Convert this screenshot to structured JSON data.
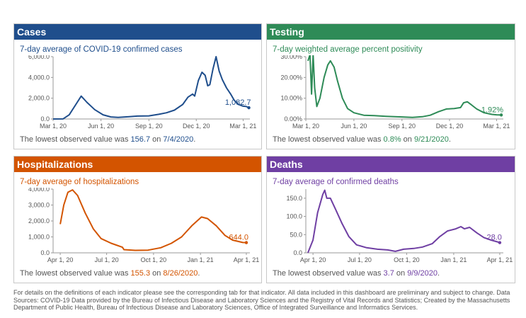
{
  "panels": [
    {
      "id": "cases",
      "header": "Cases",
      "color": "#1f4e8c",
      "subtitle": "7-day average of COVID-19 confirmed cases",
      "note_prefix": "The lowest observed value was ",
      "note_value": "156.7",
      "note_mid": " on ",
      "note_date": "7/4/2020",
      "note_suffix": "."
    },
    {
      "id": "testing",
      "header": "Testing",
      "color": "#2e8b57",
      "subtitle": "7-day weighted average percent positivity",
      "note_prefix": "The lowest observed value was ",
      "note_value": "0.8%",
      "note_mid": " on ",
      "note_date": "9/21/2020",
      "note_suffix": "."
    },
    {
      "id": "hospitalizations",
      "header": "Hospitalizations",
      "color": "#d35400",
      "subtitle": "7-day average of hospitalizations",
      "note_prefix": "The lowest observed value was ",
      "note_value": "155.3",
      "note_mid": " on ",
      "note_date": "8/26/2020",
      "note_suffix": "."
    },
    {
      "id": "deaths",
      "header": "Deaths",
      "color": "#6f3fa3",
      "subtitle": "7-day average of confirmed deaths",
      "note_prefix": "The lowest observed value was ",
      "note_value": "3.7",
      "note_mid": " on ",
      "note_date": "9/9/2020",
      "note_suffix": "."
    }
  ],
  "footer": "For details on the definitions of each indicator please see the corresponding tab for that indicator. All data included in this dashboard are preliminary and subject to change. Data Sources: COVID-19 Data provided by the Bureau of Infectious Disease and Laboratory Sciences and the Registry of Vital Records and Statistics; Created by the Massachusetts Department of Public Health, Bureau of Infectious Disease and Laboratory Sciences, Office of Integrated Surveillance and Informatics Services.",
  "chart_data": [
    {
      "type": "line",
      "title": "7-day average of COVID-19 confirmed cases",
      "xlabel": "",
      "ylabel": "",
      "x_ticks": [
        "Mar 1, 20",
        "Jun 1, 20",
        "Sep 1, 20",
        "Dec 1, 20",
        "Mar 1, 21"
      ],
      "y_ticks": [
        "0.0",
        "2,000.0",
        "4,000.0",
        "6,000.0"
      ],
      "ylim": [
        0,
        6000
      ],
      "x_range": [
        "2020-03-01",
        "2021-03-14"
      ],
      "end_label": "1,082.7",
      "series": [
        {
          "points": [
            [
              "2020-03-01",
              0
            ],
            [
              "2020-03-20",
              10
            ],
            [
              "2020-04-01",
              400
            ],
            [
              "2020-04-15",
              1500
            ],
            [
              "2020-04-24",
              2200
            ],
            [
              "2020-05-05",
              1600
            ],
            [
              "2020-05-20",
              900
            ],
            [
              "2020-06-05",
              400
            ],
            [
              "2020-06-20",
              200
            ],
            [
              "2020-07-04",
              157
            ],
            [
              "2020-07-25",
              220
            ],
            [
              "2020-08-10",
              280
            ],
            [
              "2020-09-01",
              300
            ],
            [
              "2020-09-20",
              450
            ],
            [
              "2020-10-05",
              600
            ],
            [
              "2020-10-20",
              850
            ],
            [
              "2020-11-05",
              1400
            ],
            [
              "2020-11-15",
              2100
            ],
            [
              "2020-11-24",
              2400
            ],
            [
              "2020-11-28",
              2200
            ],
            [
              "2020-12-05",
              3700
            ],
            [
              "2020-12-12",
              4500
            ],
            [
              "2020-12-18",
              4200
            ],
            [
              "2020-12-23",
              3200
            ],
            [
              "2020-12-27",
              3300
            ],
            [
              "2021-01-02",
              4800
            ],
            [
              "2021-01-08",
              6000
            ],
            [
              "2021-01-14",
              4600
            ],
            [
              "2021-01-20",
              3800
            ],
            [
              "2021-01-28",
              3000
            ],
            [
              "2021-02-05",
              2400
            ],
            [
              "2021-02-12",
              1800
            ],
            [
              "2021-02-20",
              1400
            ],
            [
              "2021-02-28",
              1250
            ],
            [
              "2021-03-07",
              1200
            ],
            [
              "2021-03-12",
              1083
            ]
          ]
        }
      ]
    },
    {
      "type": "line",
      "title": "7-day weighted average percent positivity",
      "xlabel": "",
      "ylabel": "",
      "x_ticks": [
        "Mar 1, 20",
        "Jun 1, 20",
        "Sep 1, 20",
        "Dec 1, 20",
        "Mar 1, 21"
      ],
      "y_ticks": [
        "0.00%",
        "10.00%",
        "20.00%",
        "30.00%"
      ],
      "ylim": [
        0,
        30
      ],
      "x_range": [
        "2020-03-01",
        "2021-03-14"
      ],
      "end_label": "1.92%",
      "series": [
        {
          "points": [
            [
              "2020-03-05",
              28
            ],
            [
              "2020-03-09",
              31
            ],
            [
              "2020-03-12",
              12
            ],
            [
              "2020-03-15",
              31
            ],
            [
              "2020-03-18",
              15
            ],
            [
              "2020-03-22",
              6
            ],
            [
              "2020-03-28",
              10
            ],
            [
              "2020-04-05",
              20
            ],
            [
              "2020-04-12",
              26
            ],
            [
              "2020-04-17",
              28
            ],
            [
              "2020-04-24",
              25
            ],
            [
              "2020-05-01",
              18
            ],
            [
              "2020-05-10",
              10
            ],
            [
              "2020-05-20",
              5
            ],
            [
              "2020-06-01",
              3
            ],
            [
              "2020-06-20",
              1.8
            ],
            [
              "2020-07-10",
              1.6
            ],
            [
              "2020-08-01",
              1.3
            ],
            [
              "2020-09-01",
              1.0
            ],
            [
              "2020-09-21",
              0.8
            ],
            [
              "2020-10-10",
              1.1
            ],
            [
              "2020-10-25",
              1.8
            ],
            [
              "2020-11-10",
              3.5
            ],
            [
              "2020-11-25",
              4.8
            ],
            [
              "2020-12-10",
              5.0
            ],
            [
              "2020-12-22",
              5.5
            ],
            [
              "2020-12-28",
              7.8
            ],
            [
              "2021-01-04",
              8.3
            ],
            [
              "2021-01-12",
              6.8
            ],
            [
              "2021-01-22",
              4.8
            ],
            [
              "2021-02-05",
              3.0
            ],
            [
              "2021-02-20",
              2.2
            ],
            [
              "2021-03-01",
              2.0
            ],
            [
              "2021-03-10",
              1.92
            ]
          ]
        }
      ]
    },
    {
      "type": "line",
      "title": "7-day average of hospitalizations",
      "xlabel": "",
      "ylabel": "",
      "x_ticks": [
        "Apr 1, 20",
        "Jul 1, 20",
        "Oct 1, 20",
        "Jan 1, 21",
        "Apr 1, 21"
      ],
      "y_ticks": [
        "0.0",
        "1,000.0",
        "2,000.0",
        "3,000.0",
        "4,000.0"
      ],
      "ylim": [
        0,
        4000
      ],
      "x_range": [
        "2020-03-18",
        "2021-04-08"
      ],
      "end_label": "644.0",
      "series": [
        {
          "points": [
            [
              "2020-04-01",
              1800
            ],
            [
              "2020-04-08",
              3000
            ],
            [
              "2020-04-16",
              3800
            ],
            [
              "2020-04-25",
              3950
            ],
            [
              "2020-05-05",
              3600
            ],
            [
              "2020-05-20",
              2500
            ],
            [
              "2020-06-05",
              1500
            ],
            [
              "2020-06-20",
              900
            ],
            [
              "2020-07-10",
              600
            ],
            [
              "2020-08-01",
              350
            ],
            [
              "2020-08-04",
              200
            ],
            [
              "2020-08-26",
              155
            ],
            [
              "2020-09-20",
              170
            ],
            [
              "2020-10-15",
              320
            ],
            [
              "2020-11-05",
              600
            ],
            [
              "2020-11-25",
              1000
            ],
            [
              "2020-12-15",
              1700
            ],
            [
              "2021-01-03",
              2250
            ],
            [
              "2021-01-15",
              2150
            ],
            [
              "2021-02-01",
              1700
            ],
            [
              "2021-02-18",
              1100
            ],
            [
              "2021-03-05",
              800
            ],
            [
              "2021-03-25",
              650
            ],
            [
              "2021-04-01",
              644
            ]
          ]
        }
      ]
    },
    {
      "type": "line",
      "title": "7-day average of confirmed deaths",
      "xlabel": "",
      "ylabel": "",
      "x_ticks": [
        "Apr 1, 20",
        "Jul 1, 20",
        "Oct 1, 20",
        "Jan 1, 21",
        "Apr 1, 21"
      ],
      "y_ticks": [
        "0.0",
        "50.0",
        "100.0",
        "150.0"
      ],
      "ylim": [
        0,
        175
      ],
      "x_range": [
        "2020-03-18",
        "2021-04-08"
      ],
      "end_label": "28.0",
      "series": [
        {
          "points": [
            [
              "2020-03-22",
              0
            ],
            [
              "2020-04-01",
              35
            ],
            [
              "2020-04-10",
              110
            ],
            [
              "2020-04-20",
              160
            ],
            [
              "2020-04-24",
              172
            ],
            [
              "2020-04-28",
              150
            ],
            [
              "2020-05-05",
              150
            ],
            [
              "2020-05-15",
              120
            ],
            [
              "2020-05-28",
              80
            ],
            [
              "2020-06-10",
              45
            ],
            [
              "2020-06-25",
              22
            ],
            [
              "2020-07-15",
              14
            ],
            [
              "2020-08-05",
              10
            ],
            [
              "2020-08-25",
              8
            ],
            [
              "2020-09-09",
              4
            ],
            [
              "2020-09-25",
              10
            ],
            [
              "2020-10-15",
              12
            ],
            [
              "2020-11-01",
              16
            ],
            [
              "2020-11-20",
              25
            ],
            [
              "2020-12-05",
              45
            ],
            [
              "2020-12-20",
              60
            ],
            [
              "2021-01-05",
              66
            ],
            [
              "2021-01-15",
              72
            ],
            [
              "2021-01-22",
              66
            ],
            [
              "2021-02-01",
              70
            ],
            [
              "2021-02-15",
              55
            ],
            [
              "2021-03-01",
              42
            ],
            [
              "2021-03-15",
              35
            ],
            [
              "2021-03-28",
              30
            ],
            [
              "2021-04-01",
              28
            ]
          ]
        }
      ]
    }
  ]
}
